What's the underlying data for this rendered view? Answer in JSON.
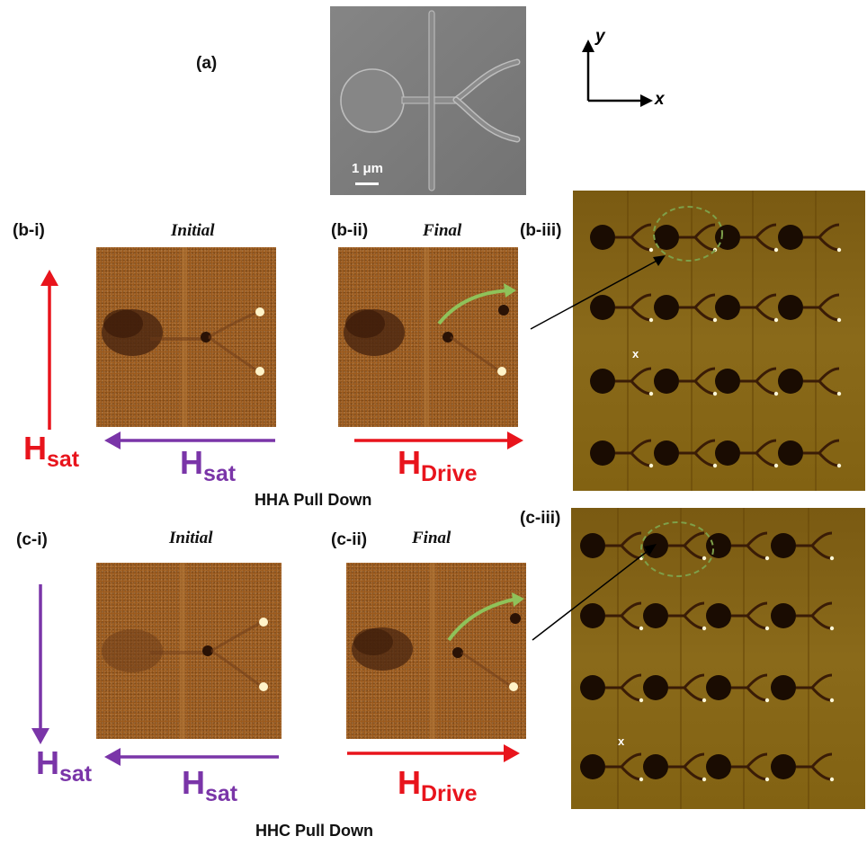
{
  "panel_labels": {
    "a": "(a)",
    "b_i": "(b-i)",
    "b_ii": "(b-ii)",
    "b_iii": "(b-iii)",
    "c_i": "(c-i)",
    "c_ii": "(c-ii)",
    "c_iii": "(c-iii)"
  },
  "captions": {
    "b_initial": "Initial",
    "b_final": "Final",
    "c_initial": "Initial",
    "c_final": "Final"
  },
  "sections": {
    "b_title": "HHA Pull Down",
    "c_title": "HHC Pull Down"
  },
  "axes": {
    "x": "x",
    "y": "y"
  },
  "scale_bar": "1 μm",
  "fields": {
    "b_left": {
      "main": "H",
      "sub": "sat"
    },
    "b_bottom": {
      "main": "H",
      "sub": "sat"
    },
    "b_drive": {
      "main": "H",
      "sub": "Drive"
    },
    "c_left": {
      "main": "H",
      "sub": "sat"
    },
    "c_bottom": {
      "main": "H",
      "sub": "sat"
    },
    "c_drive": {
      "main": "H",
      "sub": "Drive"
    }
  },
  "markers": {
    "b_x": "x",
    "c_x": "x"
  },
  "colors": {
    "red": "#e8141c",
    "purple": "#7a35a8",
    "green": "#8fc25a",
    "sem_bg": "#7c7c7c"
  }
}
